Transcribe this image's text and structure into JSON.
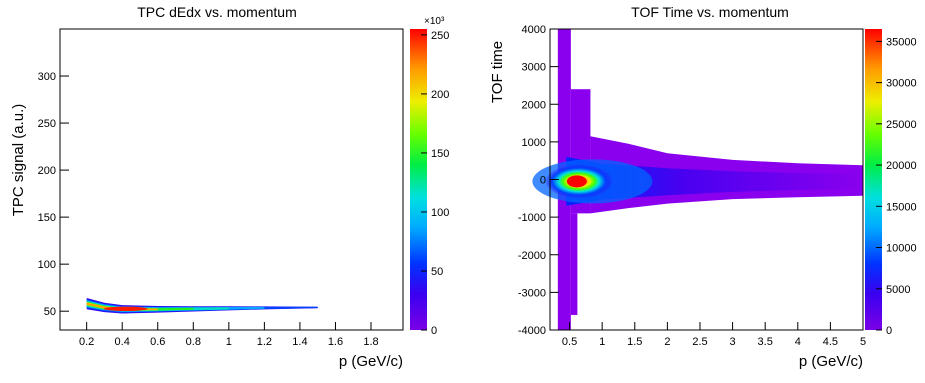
{
  "chart_data": [
    {
      "type": "heatmap",
      "title": "TPC dEdx vs. momentum",
      "xlabel": "p (GeV/c)",
      "ylabel": "TPC signal (a.u.)",
      "xlim": [
        0.05,
        1.98
      ],
      "ylim": [
        30,
        350
      ],
      "xticks": [
        0.2,
        0.4,
        0.6,
        0.8,
        1,
        1.2,
        1.4,
        1.6,
        1.8
      ],
      "xtick_labels": [
        "0.2",
        "0.4",
        "0.6",
        "0.8",
        "1",
        "1.2",
        "1.4",
        "1.6",
        "1.8"
      ],
      "yticks": [
        50,
        100,
        150,
        200,
        250,
        300
      ],
      "ytick_labels": [
        "50",
        "100",
        "150",
        "200",
        "250",
        "300"
      ],
      "colorbar": {
        "range": [
          0,
          255000
        ],
        "ticks": [
          0,
          50000,
          100000,
          150000,
          200000,
          250000
        ],
        "tick_labels": [
          "0",
          "50",
          "100",
          "150",
          "200",
          "250"
        ],
        "multiplier": "×10³"
      },
      "band": {
        "x": [
          0.2,
          0.3,
          0.4,
          0.6,
          0.8,
          1.0,
          1.2,
          1.5
        ],
        "center": [
          58,
          54,
          52,
          52,
          52.5,
          53,
          53.5,
          54
        ],
        "half_width": [
          6,
          5,
          4.5,
          3.5,
          2.8,
          2.2,
          1.6,
          0.8
        ],
        "peak_x": 0.42,
        "peak_value": 255000
      },
      "grid": false
    },
    {
      "type": "heatmap",
      "title": "TOF Time vs. momentum",
      "xlabel": "p (GeV/c)",
      "ylabel": "TOF time",
      "xlim": [
        0.2,
        5.0
      ],
      "ylim": [
        -4000,
        4000
      ],
      "xticks": [
        0.5,
        1,
        1.5,
        2,
        2.5,
        3,
        3.5,
        4,
        4.5,
        5
      ],
      "xtick_labels": [
        "0.5",
        "1",
        "1.5",
        "2",
        "2.5",
        "3",
        "3.5",
        "4",
        "4.5",
        "5"
      ],
      "yticks": [
        -4000,
        -3000,
        -2000,
        -1000,
        0,
        1000,
        2000,
        3000,
        4000
      ],
      "ytick_labels": [
        "-4000",
        "-3000",
        "-2000",
        "-1000",
        "0",
        "1000",
        "2000",
        "3000",
        "4000"
      ],
      "colorbar": {
        "range": [
          0,
          36500
        ],
        "ticks": [
          0,
          5000,
          10000,
          15000,
          20000,
          25000,
          30000,
          35000
        ],
        "tick_labels": [
          "0",
          "5000",
          "10000",
          "15000",
          "20000",
          "25000",
          "30000",
          "35000"
        ]
      },
      "band": {
        "center_y": -50,
        "peak_x": 0.55,
        "peak_value": 36000
      },
      "grid": false
    }
  ]
}
